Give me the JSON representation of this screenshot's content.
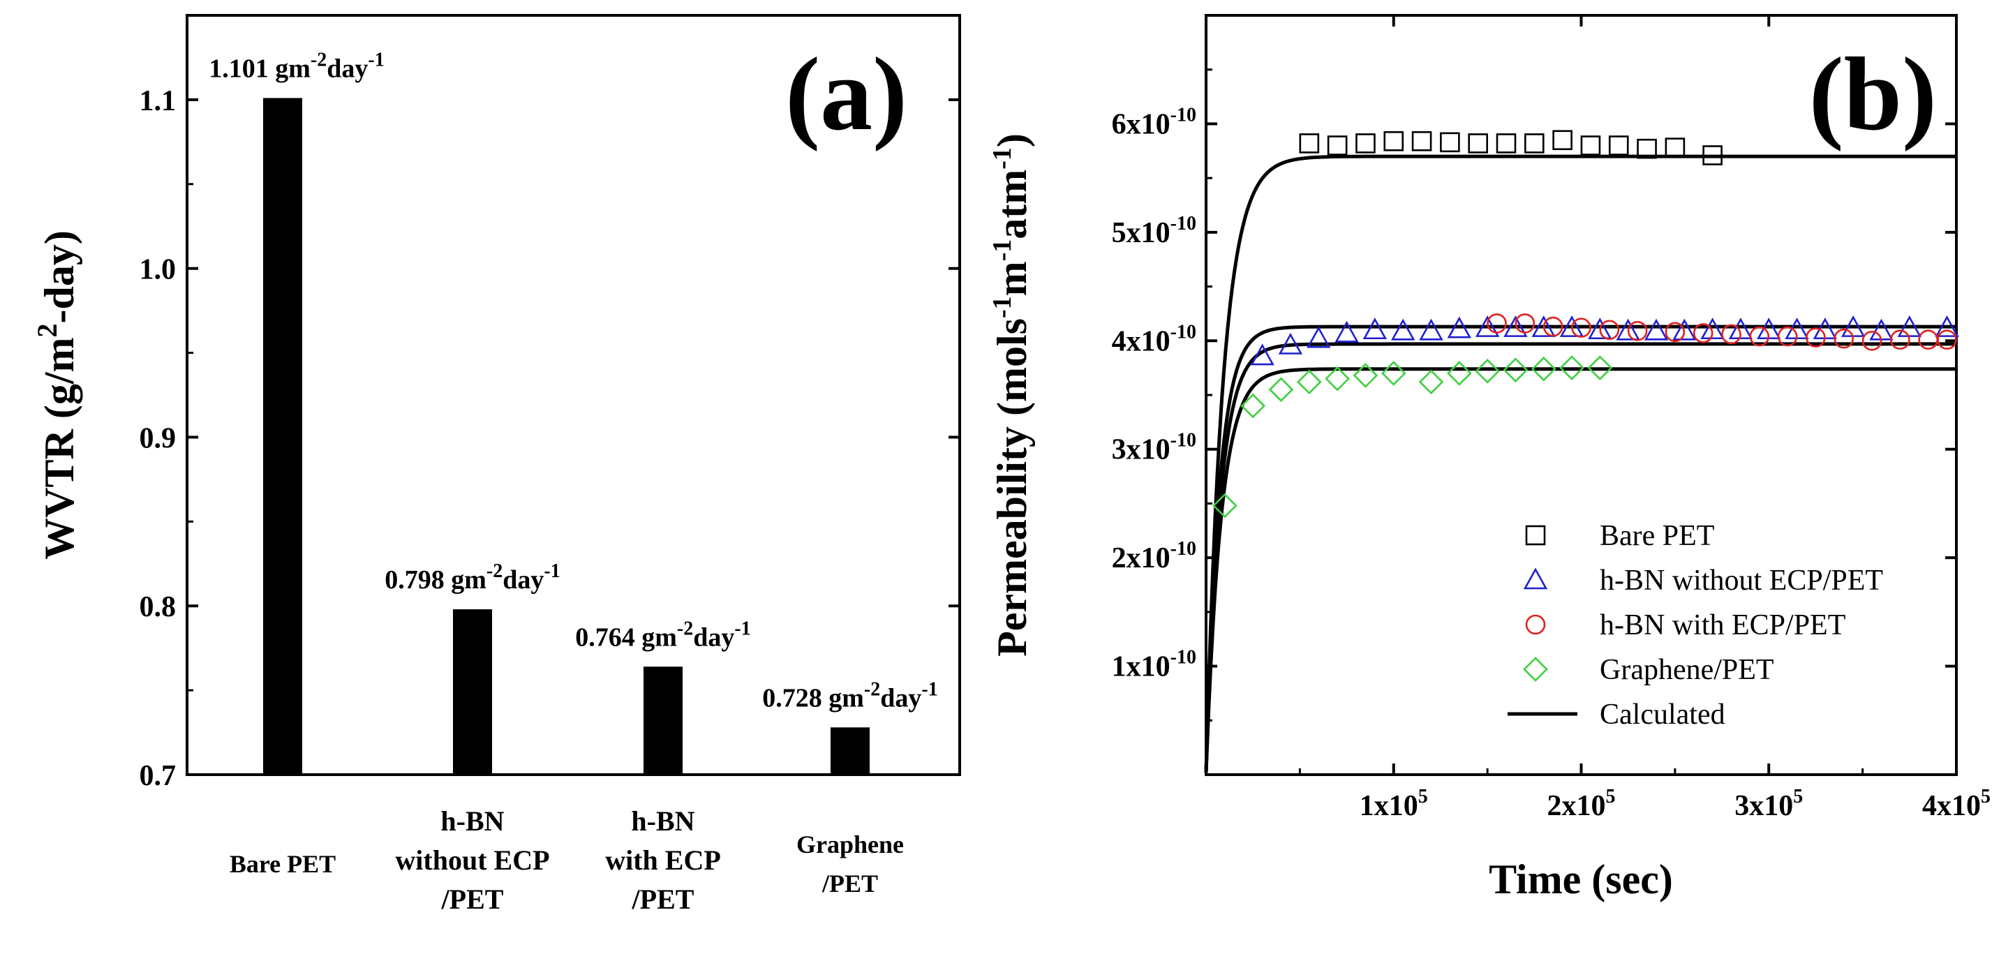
{
  "chart_data": [
    {
      "type": "bar",
      "panel_label": "(a)",
      "ylabel": "WVTR (g/m² -day)",
      "ylabel_parts": {
        "a": "WVTR (g/m",
        "sup": "2",
        "b": "-day)"
      },
      "ylim": [
        0.7,
        1.15
      ],
      "yticks": [
        "0.7",
        "0.8",
        "0.9",
        "1.0",
        "1.1"
      ],
      "ytick_values": [
        0.7,
        0.8,
        0.9,
        1.0,
        1.1
      ],
      "categories": [
        {
          "lines": [
            "Bare PET"
          ]
        },
        {
          "lines": [
            "h-BN",
            "without ECP",
            "/PET"
          ]
        },
        {
          "lines": [
            "h-BN",
            "with ECP",
            "/PET"
          ]
        },
        {
          "lines": [
            "Graphene",
            "/PET"
          ]
        }
      ],
      "values": [
        1.101,
        0.798,
        0.764,
        0.728
      ],
      "data_labels": [
        {
          "value": "1.101",
          "unit_a": " gm",
          "sup_a": "-2",
          "unit_b": "day",
          "sup_b": "-1"
        },
        {
          "value": "0.798",
          "unit_a": " gm",
          "sup_a": "-2",
          "unit_b": "day",
          "sup_b": "-1"
        },
        {
          "value": "0.764",
          "unit_a": " gm",
          "sup_a": "-2",
          "unit_b": "day",
          "sup_b": "-1"
        },
        {
          "value": "0.728",
          "unit_a": " gm",
          "sup_a": "-2",
          "unit_b": "day",
          "sup_b": "-1"
        }
      ],
      "colors": {
        "bar": "#000000"
      }
    },
    {
      "type": "scatter",
      "panel_label": "(b)",
      "xlabel": "Time (sec)",
      "ylabel_parts": {
        "a": "Permeability (mols",
        "sup1": "-1",
        "b": "m",
        "sup2": "-1",
        "c": "atm",
        "sup3": "-1",
        "d": ")"
      },
      "xlim": [
        0,
        400000
      ],
      "ylim": [
        0,
        7e-10
      ],
      "xticks": [
        {
          "value": 100000,
          "base": "1x10",
          "exp": "5"
        },
        {
          "value": 200000,
          "base": "2x10",
          "exp": "5"
        },
        {
          "value": 300000,
          "base": "3x10",
          "exp": "5"
        },
        {
          "value": 400000,
          "base": "4x10",
          "exp": "5"
        }
      ],
      "yticks": [
        {
          "value": 1e-10,
          "base": "1x10",
          "exp": "-10"
        },
        {
          "value": 2e-10,
          "base": "2x10",
          "exp": "-10"
        },
        {
          "value": 3e-10,
          "base": "3x10",
          "exp": "-10"
        },
        {
          "value": 4e-10,
          "base": "4x10",
          "exp": "-10"
        },
        {
          "value": 5e-10,
          "base": "5x10",
          "exp": "-10"
        },
        {
          "value": 6e-10,
          "base": "6x10",
          "exp": "-10"
        }
      ],
      "legend_position": "lower-right",
      "series": [
        {
          "name": "Bare PET",
          "marker": "square",
          "color": "#000000",
          "x": [
            55000,
            70000,
            85000,
            100000,
            115000,
            130000,
            145000,
            160000,
            175000,
            190000,
            205000,
            220000,
            235000,
            250000,
            270000
          ],
          "y": [
            5.82e-10,
            5.8e-10,
            5.82e-10,
            5.84e-10,
            5.84e-10,
            5.83e-10,
            5.82e-10,
            5.82e-10,
            5.82e-10,
            5.85e-10,
            5.8e-10,
            5.8e-10,
            5.77e-10,
            5.78e-10,
            5.71e-10
          ]
        },
        {
          "name": "h-BN without ECP/PET",
          "marker": "triangle",
          "color": "#1f1fd0",
          "x": [
            30000,
            45000,
            60000,
            75000,
            90000,
            105000,
            120000,
            135000,
            150000,
            165000,
            180000,
            195000,
            210000,
            225000,
            240000,
            255000,
            270000,
            285000,
            300000,
            315000,
            330000,
            345000,
            360000,
            375000,
            395000
          ],
          "y": [
            3.86e-10,
            3.96e-10,
            4.02e-10,
            4.07e-10,
            4.1e-10,
            4.09e-10,
            4.09e-10,
            4.11e-10,
            4.12e-10,
            4.12e-10,
            4.12e-10,
            4.12e-10,
            4.1e-10,
            4.09e-10,
            4.09e-10,
            4.09e-10,
            4.1e-10,
            4.1e-10,
            4.1e-10,
            4.1e-10,
            4.1e-10,
            4.12e-10,
            4.09e-10,
            4.12e-10,
            4.12e-10
          ]
        },
        {
          "name": "h-BN with ECP/PET",
          "marker": "circle",
          "color": "#e02020",
          "x": [
            155000,
            170000,
            185000,
            200000,
            215000,
            230000,
            250000,
            265000,
            280000,
            295000,
            310000,
            325000,
            340000,
            355000,
            370000,
            385000,
            395000
          ],
          "y": [
            4.16e-10,
            4.16e-10,
            4.13e-10,
            4.12e-10,
            4.1e-10,
            4.09e-10,
            4.08e-10,
            4.07e-10,
            4.06e-10,
            4.04e-10,
            4.04e-10,
            4.03e-10,
            4.02e-10,
            4e-10,
            4.01e-10,
            4.01e-10,
            4.01e-10
          ]
        },
        {
          "name": "Graphene/PET",
          "marker": "diamond",
          "color": "#3ecf3e",
          "x": [
            10000,
            25000,
            40000,
            55000,
            70000,
            85000,
            100000,
            120000,
            135000,
            150000,
            165000,
            180000,
            195000,
            210000
          ],
          "y": [
            2.48e-10,
            3.4e-10,
            3.55e-10,
            3.62e-10,
            3.65e-10,
            3.68e-10,
            3.7e-10,
            3.62e-10,
            3.7e-10,
            3.72e-10,
            3.73e-10,
            3.74e-10,
            3.75e-10,
            3.75e-10
          ]
        }
      ],
      "calculated": {
        "name": "Calculated",
        "color": "#000000",
        "plateaus": [
          5.7e-10,
          4.13e-10,
          3.97e-10,
          3.74e-10
        ],
        "rise_time_constants": [
          9000,
          7000,
          7500,
          8000
        ],
        "start": 0
      }
    }
  ]
}
